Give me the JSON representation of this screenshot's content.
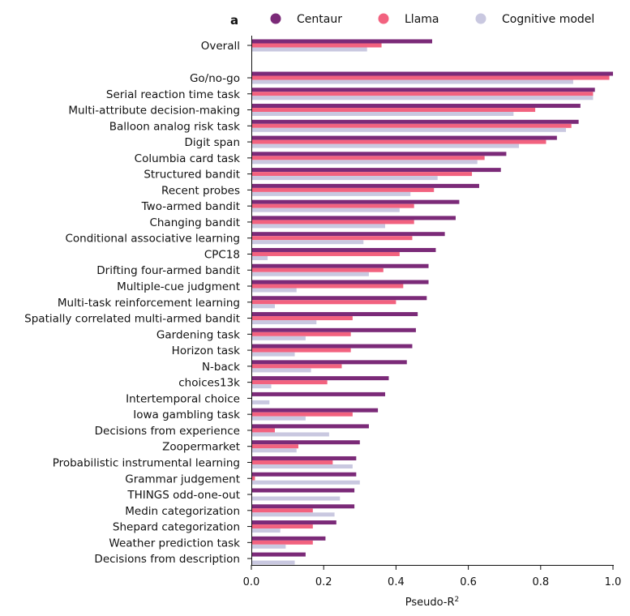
{
  "panel_label": "a",
  "colors": {
    "Centaur": "#7b2a78",
    "Llama": "#f2627f",
    "Cognitive model": "#c9c8e0"
  },
  "chart_data": {
    "type": "bar",
    "orientation": "horizontal",
    "title": "",
    "xlabel": "Pseudo-R",
    "xlabel_superscript": "2",
    "ylabel": "",
    "xlim": [
      0,
      1.0
    ],
    "xticks": [
      "0.0",
      "0.2",
      "0.4",
      "0.6",
      "0.8",
      "1.0"
    ],
    "grid": false,
    "legend_position": "top",
    "categories": [
      "Overall",
      "Go/no-go",
      "Serial reaction time task",
      "Multi-attribute decision-making",
      "Balloon analog risk task",
      "Digit span",
      "Columbia card task",
      "Structured bandit",
      "Recent probes",
      "Two-armed bandit",
      "Changing bandit",
      "Conditional associative learning",
      "CPC18",
      "Drifting four-armed bandit",
      "Multiple-cue judgment",
      "Multi-task reinforcement learning",
      "Spatially correlated multi-armed bandit",
      "Gardening task",
      "Horizon task",
      "N-back",
      "choices13k",
      "Intertemporal choice",
      "Iowa gambling task",
      "Decisions from experience",
      "Zoopermarket",
      "Probabilistic instrumental learning",
      "Grammar judgement",
      "THINGS odd-one-out",
      "Medin categorization",
      "Shepard categorization",
      "Weather prediction task",
      "Decisions from description"
    ],
    "series": [
      {
        "name": "Centaur",
        "values": [
          0.5,
          1.0,
          0.95,
          0.91,
          0.905,
          0.845,
          0.705,
          0.69,
          0.63,
          0.575,
          0.565,
          0.535,
          0.51,
          0.49,
          0.49,
          0.485,
          0.46,
          0.455,
          0.445,
          0.43,
          0.38,
          0.37,
          0.35,
          0.325,
          0.3,
          0.29,
          0.29,
          0.285,
          0.285,
          0.235,
          0.205,
          0.15
        ]
      },
      {
        "name": "Llama",
        "values": [
          0.36,
          0.99,
          0.945,
          0.785,
          0.885,
          0.815,
          0.645,
          0.61,
          0.505,
          0.45,
          0.45,
          0.445,
          0.41,
          0.365,
          0.42,
          0.4,
          0.28,
          0.275,
          0.275,
          0.25,
          0.21,
          0.0,
          0.28,
          0.065,
          0.13,
          0.225,
          0.01,
          0.0,
          0.17,
          0.17,
          0.17,
          0.0
        ]
      },
      {
        "name": "Cognitive model",
        "values": [
          0.32,
          0.89,
          0.945,
          0.725,
          0.87,
          0.74,
          0.625,
          0.515,
          0.44,
          0.41,
          0.37,
          0.31,
          0.045,
          0.325,
          0.125,
          0.065,
          0.18,
          0.15,
          0.12,
          0.165,
          0.055,
          0.05,
          0.15,
          0.215,
          0.125,
          0.28,
          0.3,
          0.245,
          0.23,
          0.08,
          0.095,
          0.12
        ]
      }
    ]
  }
}
